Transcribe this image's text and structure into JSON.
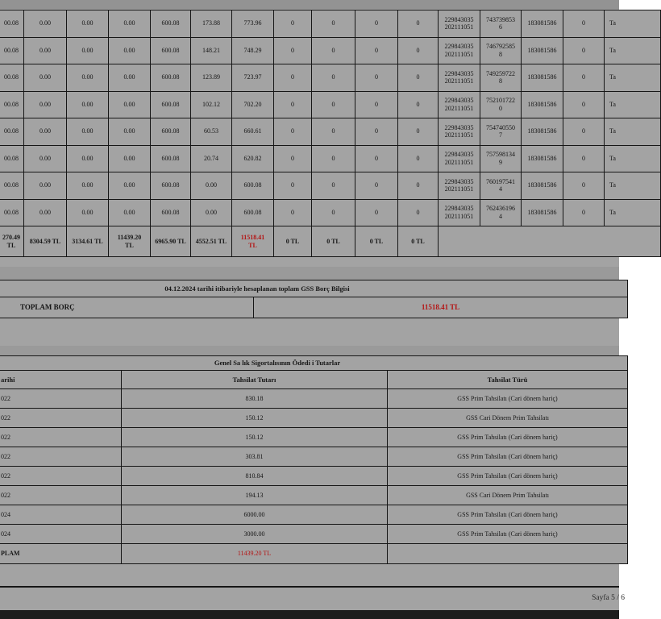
{
  "colors": {
    "red": "#b41414",
    "page_background": "#a3a3a3",
    "bottom_bar": "#1d1d1d",
    "border": "#161616"
  },
  "debt_table": {
    "rows": [
      [
        "00.08",
        "0.00",
        "0.00",
        "0.00",
        "600.08",
        "173.88",
        "773.96",
        "0",
        "0",
        "0",
        "0",
        "229843035\n202111051",
        "743739853\n6",
        "183081586",
        "0",
        "Ta"
      ],
      [
        "00.08",
        "0.00",
        "0.00",
        "0.00",
        "600.08",
        "148.21",
        "748.29",
        "0",
        "0",
        "0",
        "0",
        "229843035\n202111051",
        "746792585\n8",
        "183081586",
        "0",
        "Ta"
      ],
      [
        "00.08",
        "0.00",
        "0.00",
        "0.00",
        "600.08",
        "123.89",
        "723.97",
        "0",
        "0",
        "0",
        "0",
        "229843035\n202111051",
        "749259722\n8",
        "183081586",
        "0",
        "Ta"
      ],
      [
        "00.08",
        "0.00",
        "0.00",
        "0.00",
        "600.08",
        "102.12",
        "702.20",
        "0",
        "0",
        "0",
        "0",
        "229843035\n202111051",
        "752101722\n0",
        "183081586",
        "0",
        "Ta"
      ],
      [
        "00.08",
        "0.00",
        "0.00",
        "0.00",
        "600.08",
        "60.53",
        "660.61",
        "0",
        "0",
        "0",
        "0",
        "229843035\n202111051",
        "754740550\n7",
        "183081586",
        "0",
        "Ta"
      ],
      [
        "00.08",
        "0.00",
        "0.00",
        "0.00",
        "600.08",
        "20.74",
        "620.82",
        "0",
        "0",
        "0",
        "0",
        "229843035\n202111051",
        "757598134\n9",
        "183081586",
        "0",
        "Ta"
      ],
      [
        "00.08",
        "0.00",
        "0.00",
        "0.00",
        "600.08",
        "0.00",
        "600.08",
        "0",
        "0",
        "0",
        "0",
        "229843035\n202111051",
        "760197541\n4",
        "183081586",
        "0",
        "Ta"
      ],
      [
        "00.08",
        "0.00",
        "0.00",
        "0.00",
        "600.08",
        "0.00",
        "600.08",
        "0",
        "0",
        "0",
        "0",
        "229843035\n202111051",
        "762436196\n4",
        "183081586",
        "0",
        "Ta"
      ]
    ],
    "totals": [
      "270.49\nTL",
      "8304.59 TL",
      "3134.61 TL",
      "11439.20\nTL",
      "6965.90 TL",
      "4552.51 TL",
      {
        "text": "11518.41\nTL",
        "red": true
      },
      "0 TL",
      "0 TL",
      "0 TL",
      "0 TL",
      {
        "text": "",
        "span": 5
      }
    ]
  },
  "summary": {
    "title": "04.12.2024  tarihi itibariyle hesaplanan toplam GSS Borç Bilgisi",
    "label": "TOPLAM BORÇ",
    "value": "11518.41 TL"
  },
  "payments": {
    "title": "Genel Sa lık Sigortalısının Ödedi i Tutarlar",
    "headers": [
      "arihi",
      "Tahsilat Tutarı",
      "Tahsilat Türü"
    ],
    "rows": [
      [
        "022",
        "830.18",
        "GSS Prim Tahsilatı (Cari dönem hariç)"
      ],
      [
        "022",
        "150.12",
        "GSS Cari Dönem Prim Tahsilatı"
      ],
      [
        "022",
        "150.12",
        "GSS Prim Tahsilatı (Cari dönem hariç)"
      ],
      [
        "022",
        "303.81",
        "GSS Prim Tahsilatı (Cari dönem hariç)"
      ],
      [
        "022",
        "810.84",
        "GSS Prim Tahsilatı (Cari dönem hariç)"
      ],
      [
        "022",
        "194.13",
        "GSS Cari Dönem Prim Tahsilatı"
      ],
      [
        "024",
        "6000.00",
        "GSS Prim Tahsilatı (Cari dönem hariç)"
      ],
      [
        "024",
        "3000.00",
        "GSS Prim Tahsilatı (Cari dönem hariç)"
      ]
    ],
    "total_row": {
      "label": "PLAM",
      "value": "11439.20 TL",
      "turu": ""
    }
  },
  "footer": {
    "page_label": "Sayfa 5 / 6"
  }
}
